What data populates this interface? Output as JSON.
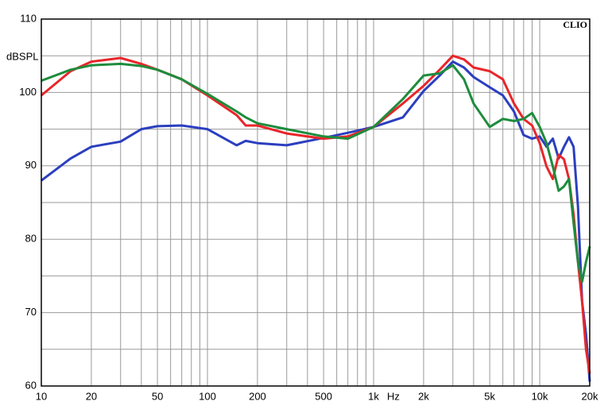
{
  "chart_data": {
    "type": "line",
    "ylabel": "dBSPL",
    "xlabel": "Hz",
    "brand": "CLIO",
    "xscale": "log",
    "grid": true,
    "xlim": [
      10,
      20000
    ],
    "ylim": [
      60,
      110
    ],
    "xticks": [
      10,
      20,
      50,
      100,
      200,
      500,
      {
        "value": 1000,
        "label": "1k"
      },
      {
        "value": 2000,
        "label": "2k"
      },
      {
        "value": 5000,
        "label": "5k"
      },
      {
        "value": 10000,
        "label": "10k"
      },
      {
        "value": 20000,
        "label": "20k"
      }
    ],
    "xminor": [
      30,
      40,
      60,
      70,
      80,
      90,
      300,
      400,
      600,
      700,
      800,
      900,
      3000,
      4000,
      6000,
      7000,
      8000,
      9000
    ],
    "yticks": [
      60,
      70,
      80,
      90,
      100,
      110
    ],
    "yminor": [
      65,
      75,
      85,
      95,
      105
    ],
    "x": [
      10,
      15,
      20,
      30,
      40,
      50,
      70,
      100,
      150,
      170,
      200,
      300,
      500,
      700,
      1000,
      1500,
      2000,
      2500,
      3000,
      3500,
      4000,
      5000,
      6000,
      7000,
      8000,
      9000,
      10000,
      11000,
      12000,
      13000,
      14000,
      15000,
      16000,
      17000,
      18000,
      19000,
      20000
    ],
    "series": [
      {
        "color": "#2b3fbf",
        "values": [
          88,
          91,
          92.6,
          93.3,
          95,
          95.4,
          95.5,
          95,
          92.8,
          93.4,
          93.1,
          92.8,
          93.8,
          94.5,
          95.3,
          96.6,
          100.2,
          102.3,
          104.2,
          103.4,
          102.1,
          100.7,
          99.6,
          97.4,
          94.2,
          93.7,
          94,
          92.6,
          93.7,
          91,
          92.6,
          93.9,
          92.6,
          84.5,
          71.5,
          67.1,
          60.6
        ]
      },
      {
        "color": "#e8262a",
        "values": [
          99.6,
          102.9,
          104.2,
          104.7,
          103.9,
          103.1,
          101.8,
          99.6,
          96.9,
          95.5,
          95.5,
          94.4,
          93.7,
          94,
          95.3,
          98.5,
          100.9,
          103.1,
          105,
          104.5,
          103.4,
          102.9,
          101.8,
          98.5,
          96.4,
          95.5,
          93.1,
          89.9,
          88.2,
          91.5,
          90.9,
          88.2,
          83.4,
          76.9,
          71.5,
          65,
          61.7
        ]
      },
      {
        "color": "#1e8c3c",
        "values": [
          101.6,
          103.1,
          103.7,
          103.9,
          103.6,
          103.1,
          101.8,
          99.8,
          97.4,
          96.6,
          95.8,
          95,
          94,
          93.7,
          95.3,
          99.1,
          102.3,
          102.6,
          103.7,
          101.8,
          98.5,
          95.3,
          96.4,
          96.1,
          96.4,
          97.2,
          95.3,
          93.1,
          89.9,
          86.6,
          87.2,
          88.2,
          82.2,
          76.9,
          74.2,
          76.9,
          79
        ]
      }
    ]
  }
}
